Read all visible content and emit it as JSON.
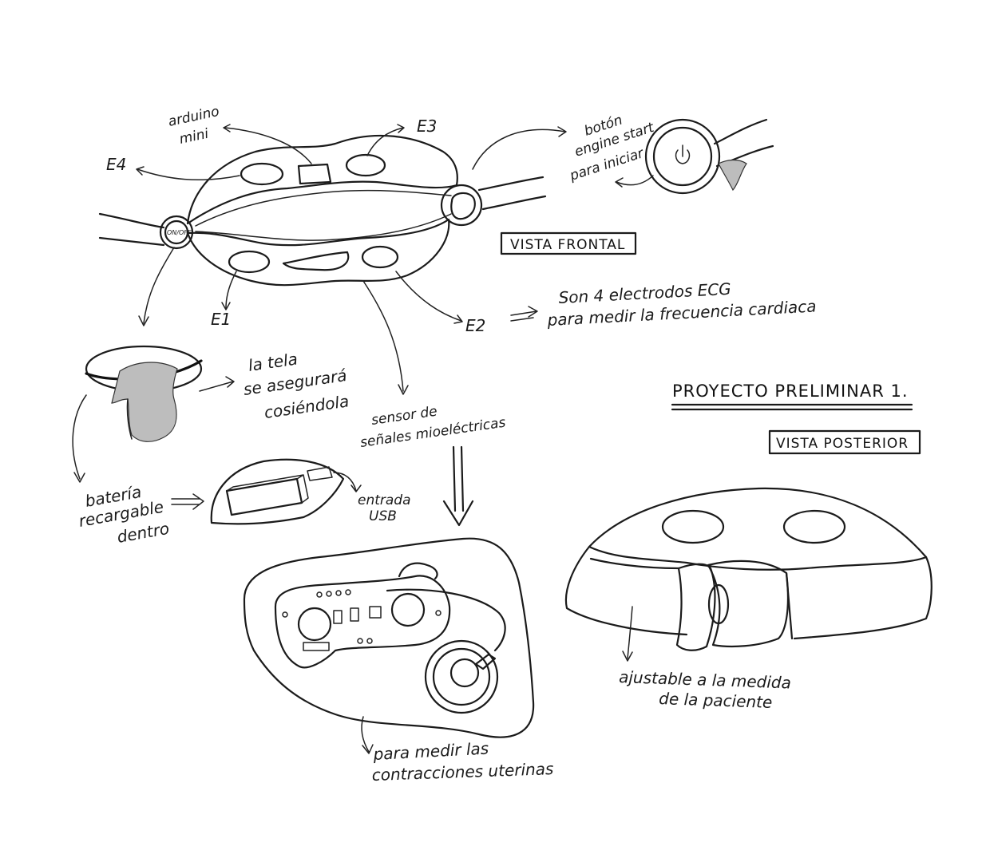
{
  "labels": {
    "arduino_line1": "arduino",
    "arduino_line2": "mini",
    "e3": "E3",
    "e4": "E4",
    "e1": "E1",
    "e2": "E2",
    "boton_line1": "botón",
    "boton_line2": "engine start",
    "boton_line3": "para iniciar",
    "vista_frontal": "VISTA FRONTAL",
    "ecg_line1": "Son 4 electrodos ECG",
    "ecg_line2": "para medir la frecuencia cardiaca",
    "tela_line1": "la tela",
    "tela_line2": "se asegurará",
    "tela_line3": "cosiéndola",
    "proyecto": "PROYECTO PRELIMINAR 1.",
    "vista_posterior": "VISTA POSTERIOR",
    "sensor_line1": "sensor de",
    "sensor_line2": "señales mioeléctricas",
    "bateria_line1": "batería",
    "bateria_line2": "recargable",
    "bateria_line3": "dentro",
    "usb_line1": "entrada",
    "usb_line2": "USB",
    "ajustable_line1": "ajustable a la medida",
    "ajustable_line2": "de la paciente",
    "contracciones_line1": "para medir las",
    "contracciones_line2": "contracciones uterinas",
    "onoff": "ON/OFF"
  }
}
